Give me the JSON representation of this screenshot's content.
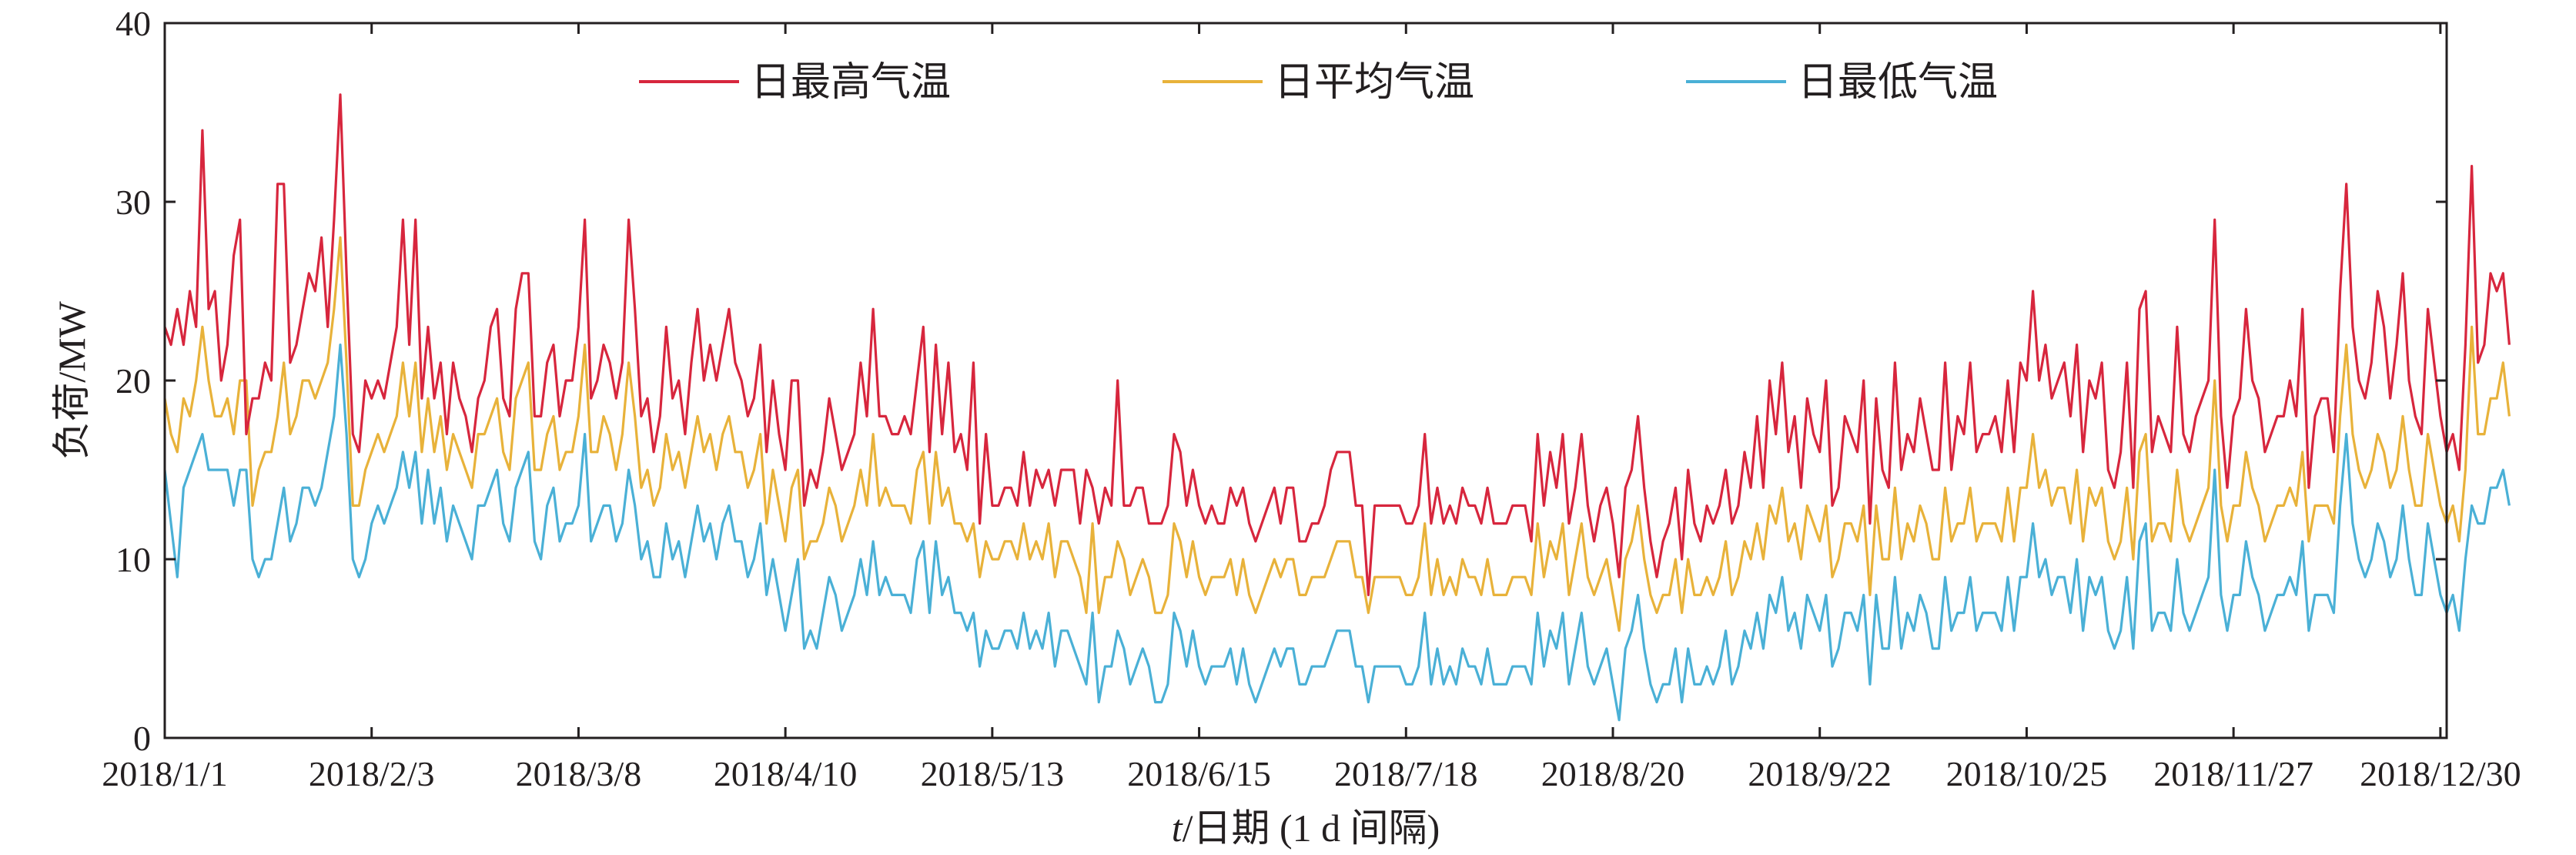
{
  "chart_data": {
    "type": "line",
    "title": "",
    "xlabel": "t/日期 (1 d 间隔)",
    "xlabel_parts": {
      "var": "t",
      "rest": "/日期 (1 d 间隔)"
    },
    "ylabel": "负荷/MW",
    "x_start": "2018/1/1",
    "x_end": "2018/12/31",
    "x_step": "1 d",
    "xlim": [
      0,
      364
    ],
    "ylim": [
      0,
      40
    ],
    "y_ticks": [
      0,
      10,
      20,
      30,
      40
    ],
    "x_ticks": [
      {
        "day": 0,
        "label": "2018/1/1"
      },
      {
        "day": 33,
        "label": "2018/2/3"
      },
      {
        "day": 66,
        "label": "2018/3/8"
      },
      {
        "day": 99,
        "label": "2018/4/10"
      },
      {
        "day": 132,
        "label": "2018/5/13"
      },
      {
        "day": 165,
        "label": "2018/6/15"
      },
      {
        "day": 198,
        "label": "2018/7/18"
      },
      {
        "day": 231,
        "label": "2018/8/20"
      },
      {
        "day": 264,
        "label": "2018/9/22"
      },
      {
        "day": 297,
        "label": "2018/10/25"
      },
      {
        "day": 330,
        "label": "2018/11/27"
      },
      {
        "day": 363,
        "label": "2018/12/30"
      }
    ],
    "grid": false,
    "legend_position": "top",
    "series": [
      {
        "name": "日最高气温",
        "color": "#d7263d",
        "values": [
          23,
          22,
          24,
          22,
          25,
          23,
          34,
          24,
          25,
          20,
          22,
          27,
          29,
          17,
          19,
          19,
          21,
          20,
          31,
          31,
          21,
          22,
          24,
          26,
          25,
          28,
          23,
          29,
          36,
          26,
          17,
          16,
          20,
          19,
          20,
          19,
          21,
          23,
          29,
          22,
          29,
          19,
          23,
          19,
          21,
          17,
          21,
          19,
          18,
          16,
          19,
          20,
          23,
          24,
          19,
          18,
          24,
          26,
          26,
          18,
          18,
          21,
          22,
          18,
          20,
          20,
          23,
          29,
          19,
          20,
          22,
          21,
          19,
          21,
          29,
          24,
          18,
          19,
          16,
          18,
          23,
          19,
          20,
          17,
          21,
          24,
          20,
          22,
          20,
          22,
          24,
          21,
          20,
          18,
          19,
          22,
          16,
          20,
          17,
          15,
          20,
          20,
          13,
          15,
          14,
          16,
          19,
          17,
          15,
          16,
          17,
          21,
          18,
          24,
          18,
          18,
          17,
          17,
          18,
          17,
          20,
          23,
          16,
          22,
          17,
          21,
          16,
          17,
          15,
          21,
          12,
          17,
          13,
          13,
          14,
          14,
          13,
          16,
          13,
          15,
          14,
          15,
          13,
          15,
          15,
          15,
          12,
          15,
          14,
          12,
          14,
          13,
          20,
          13,
          13,
          14,
          14,
          12,
          12,
          12,
          13,
          17,
          16,
          13,
          15,
          13,
          12,
          13,
          12,
          12,
          14,
          13,
          14,
          12,
          11,
          12,
          13,
          14,
          12,
          14,
          14,
          11,
          11,
          12,
          12,
          13,
          15,
          16,
          16,
          16,
          13,
          13,
          8,
          13,
          13,
          13,
          13,
          13,
          12,
          12,
          13,
          17,
          12,
          14,
          12,
          13,
          12,
          14,
          13,
          13,
          12,
          14,
          12,
          12,
          12,
          13,
          13,
          13,
          11,
          17,
          13,
          16,
          14,
          17,
          12,
          14,
          17,
          13,
          11,
          13,
          14,
          12,
          9,
          14,
          15,
          18,
          14,
          11,
          9,
          11,
          12,
          14,
          10,
          15,
          12,
          11,
          13,
          12,
          13,
          15,
          12,
          13,
          16,
          14,
          18,
          14,
          20,
          17,
          21,
          16,
          18,
          14,
          19,
          17,
          16,
          20,
          13,
          14,
          18,
          17,
          16,
          20,
          12,
          19,
          15,
          14,
          21,
          15,
          17,
          16,
          19,
          17,
          15,
          15,
          21,
          15,
          18,
          17,
          21,
          16,
          17,
          17,
          18,
          16,
          20,
          16,
          21,
          20,
          25,
          20,
          22,
          19,
          20,
          21,
          18,
          22,
          16,
          20,
          19,
          21,
          15,
          14,
          16,
          21,
          14,
          24,
          25,
          16,
          18,
          17,
          16,
          23,
          17,
          16,
          18,
          19,
          20,
          29,
          18,
          14,
          18,
          19,
          24,
          20,
          19,
          16,
          17,
          18,
          18,
          20,
          18,
          24,
          14,
          18,
          19,
          19,
          16,
          25,
          31,
          23,
          20,
          19,
          21,
          25,
          23,
          19,
          22,
          26,
          20,
          18,
          17,
          24,
          21,
          18,
          16,
          17,
          15,
          22,
          32,
          21,
          22,
          26,
          25,
          26,
          22
        ]
      },
      {
        "name": "日平均气温",
        "color": "#e8b23a",
        "values": [
          19,
          17,
          16,
          19,
          18,
          20,
          23,
          20,
          18,
          18,
          19,
          17,
          20,
          20,
          13,
          15,
          16,
          16,
          18,
          21,
          17,
          18,
          20,
          20,
          19,
          20,
          21,
          24,
          28,
          21,
          13,
          13,
          15,
          16,
          17,
          16,
          17,
          18,
          21,
          18,
          21,
          16,
          19,
          16,
          18,
          15,
          17,
          16,
          15,
          14,
          17,
          17,
          18,
          19,
          16,
          15,
          19,
          20,
          21,
          15,
          15,
          17,
          18,
          15,
          16,
          16,
          18,
          22,
          16,
          16,
          18,
          17,
          15,
          17,
          21,
          18,
          14,
          15,
          13,
          14,
          17,
          15,
          16,
          14,
          16,
          18,
          16,
          17,
          15,
          17,
          18,
          16,
          16,
          14,
          15,
          17,
          12,
          15,
          13,
          11,
          14,
          15,
          10,
          11,
          11,
          12,
          14,
          13,
          11,
          12,
          13,
          15,
          13,
          17,
          13,
          14,
          13,
          13,
          13,
          12,
          15,
          16,
          12,
          16,
          13,
          14,
          12,
          12,
          11,
          12,
          9,
          11,
          10,
          10,
          11,
          11,
          10,
          12,
          10,
          11,
          10,
          12,
          9,
          11,
          11,
          10,
          9,
          7,
          12,
          7,
          9,
          9,
          11,
          10,
          8,
          9,
          10,
          9,
          7,
          7,
          8,
          12,
          11,
          9,
          11,
          9,
          8,
          9,
          9,
          9,
          10,
          8,
          10,
          8,
          7,
          8,
          9,
          10,
          9,
          10,
          10,
          8,
          8,
          9,
          9,
          9,
          10,
          11,
          11,
          11,
          9,
          9,
          7,
          9,
          9,
          9,
          9,
          9,
          8,
          8,
          9,
          12,
          8,
          10,
          8,
          9,
          8,
          10,
          9,
          9,
          8,
          10,
          8,
          8,
          8,
          9,
          9,
          9,
          8,
          12,
          9,
          11,
          10,
          12,
          8,
          10,
          12,
          9,
          8,
          9,
          10,
          8,
          6,
          10,
          11,
          13,
          10,
          8,
          7,
          8,
          8,
          10,
          7,
          10,
          8,
          8,
          9,
          8,
          9,
          11,
          8,
          9,
          11,
          10,
          12,
          10,
          13,
          12,
          14,
          11,
          12,
          10,
          13,
          12,
          11,
          13,
          9,
          10,
          12,
          12,
          11,
          13,
          8,
          13,
          10,
          10,
          14,
          10,
          12,
          11,
          13,
          12,
          10,
          10,
          14,
          11,
          12,
          12,
          14,
          11,
          12,
          12,
          12,
          11,
          14,
          11,
          14,
          14,
          17,
          14,
          15,
          13,
          14,
          14,
          12,
          15,
          11,
          14,
          13,
          14,
          11,
          10,
          11,
          14,
          10,
          16,
          17,
          11,
          12,
          12,
          11,
          15,
          12,
          11,
          12,
          13,
          14,
          20,
          13,
          11,
          13,
          13,
          16,
          14,
          13,
          11,
          12,
          13,
          13,
          14,
          13,
          16,
          11,
          13,
          13,
          13,
          12,
          18,
          22,
          17,
          15,
          14,
          15,
          17,
          16,
          14,
          15,
          18,
          15,
          13,
          13,
          17,
          15,
          13,
          12,
          13,
          11,
          15,
          23,
          17,
          17,
          19,
          19,
          21,
          18
        ]
      },
      {
        "name": "日最低气温",
        "color": "#4ab0d6",
        "values": [
          15,
          12,
          9,
          14,
          15,
          16,
          17,
          15,
          15,
          15,
          15,
          13,
          15,
          15,
          10,
          9,
          10,
          10,
          12,
          14,
          11,
          12,
          14,
          14,
          13,
          14,
          16,
          18,
          22,
          17,
          10,
          9,
          10,
          12,
          13,
          12,
          13,
          14,
          16,
          14,
          16,
          12,
          15,
          12,
          14,
          11,
          13,
          12,
          11,
          10,
          13,
          13,
          14,
          15,
          12,
          11,
          14,
          15,
          16,
          11,
          10,
          13,
          14,
          11,
          12,
          12,
          13,
          17,
          11,
          12,
          13,
          13,
          11,
          12,
          15,
          13,
          10,
          11,
          9,
          9,
          12,
          10,
          11,
          9,
          11,
          13,
          11,
          12,
          10,
          12,
          13,
          11,
          11,
          9,
          10,
          12,
          8,
          10,
          8,
          6,
          8,
          10,
          5,
          6,
          5,
          7,
          9,
          8,
          6,
          7,
          8,
          10,
          8,
          11,
          8,
          9,
          8,
          8,
          8,
          7,
          10,
          11,
          7,
          11,
          8,
          9,
          7,
          7,
          6,
          7,
          4,
          6,
          5,
          5,
          6,
          6,
          5,
          7,
          5,
          6,
          5,
          7,
          4,
          6,
          6,
          5,
          4,
          3,
          7,
          2,
          4,
          4,
          6,
          5,
          3,
          4,
          5,
          4,
          2,
          2,
          3,
          7,
          6,
          4,
          6,
          4,
          3,
          4,
          4,
          4,
          5,
          3,
          5,
          3,
          2,
          3,
          4,
          5,
          4,
          5,
          5,
          3,
          3,
          4,
          4,
          4,
          5,
          6,
          6,
          6,
          4,
          4,
          2,
          4,
          4,
          4,
          4,
          4,
          3,
          3,
          4,
          7,
          3,
          5,
          3,
          4,
          3,
          5,
          4,
          4,
          3,
          5,
          3,
          3,
          3,
          4,
          4,
          4,
          3,
          7,
          4,
          6,
          5,
          7,
          3,
          5,
          7,
          4,
          3,
          4,
          5,
          3,
          1,
          5,
          6,
          8,
          5,
          3,
          2,
          3,
          3,
          5,
          2,
          5,
          3,
          3,
          4,
          3,
          4,
          6,
          3,
          4,
          6,
          5,
          7,
          5,
          8,
          7,
          9,
          6,
          7,
          5,
          8,
          7,
          6,
          8,
          4,
          5,
          7,
          7,
          6,
          8,
          3,
          8,
          5,
          5,
          9,
          5,
          7,
          6,
          8,
          7,
          5,
          5,
          9,
          6,
          7,
          7,
          9,
          6,
          7,
          7,
          7,
          6,
          9,
          6,
          9,
          9,
          12,
          9,
          10,
          8,
          9,
          9,
          7,
          10,
          6,
          9,
          8,
          9,
          6,
          5,
          6,
          9,
          5,
          11,
          12,
          6,
          7,
          7,
          6,
          10,
          7,
          6,
          7,
          8,
          9,
          15,
          8,
          6,
          8,
          8,
          11,
          9,
          8,
          6,
          7,
          8,
          8,
          9,
          8,
          11,
          6,
          8,
          8,
          8,
          7,
          13,
          17,
          12,
          10,
          9,
          10,
          12,
          11,
          9,
          10,
          13,
          10,
          8,
          8,
          12,
          10,
          8,
          7,
          8,
          6,
          10,
          13,
          12,
          12,
          14,
          14,
          15,
          13
        ]
      }
    ]
  }
}
